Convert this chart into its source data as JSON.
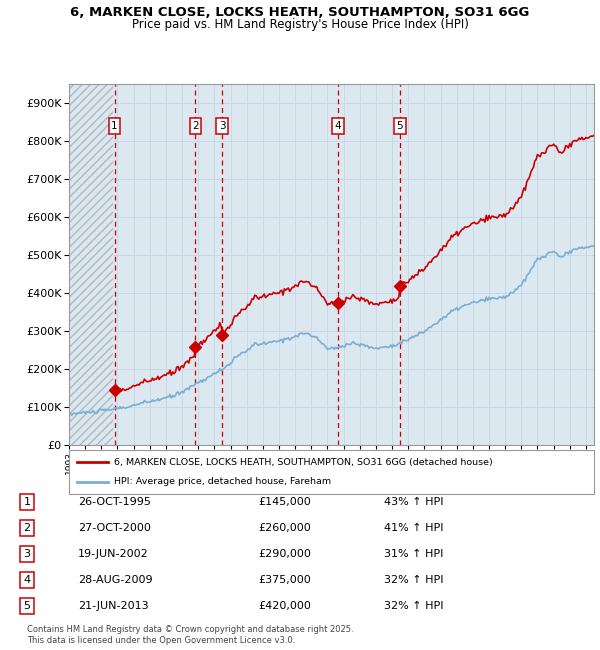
{
  "title_line1": "6, MARKEN CLOSE, LOCKS HEATH, SOUTHAMPTON, SO31 6GG",
  "title_line2": "Price paid vs. HM Land Registry's House Price Index (HPI)",
  "ylim": [
    0,
    950000
  ],
  "yticks": [
    0,
    100000,
    200000,
    300000,
    400000,
    500000,
    600000,
    700000,
    800000,
    900000
  ],
  "ytick_labels": [
    "£0",
    "£100K",
    "£200K",
    "£300K",
    "£400K",
    "£500K",
    "£600K",
    "£700K",
    "£800K",
    "£900K"
  ],
  "sale_dates_x": [
    1995.82,
    2000.83,
    2002.47,
    2009.66,
    2013.47
  ],
  "sale_prices_y": [
    145000,
    260000,
    290000,
    375000,
    420000
  ],
  "sale_labels": [
    "1",
    "2",
    "3",
    "4",
    "5"
  ],
  "hpi_line_color": "#7aaed4",
  "price_line_color": "#cc0000",
  "grid_color": "#c8d8e8",
  "bg_color": "#dce8f0",
  "legend_price_label": "6, MARKEN CLOSE, LOCKS HEATH, SOUTHAMPTON, SO31 6GG (detached house)",
  "legend_hpi_label": "HPI: Average price, detached house, Fareham",
  "table_entries": [
    {
      "num": "1",
      "date": "26-OCT-1995",
      "price": "£145,000",
      "hpi": "43% ↑ HPI"
    },
    {
      "num": "2",
      "date": "27-OCT-2000",
      "price": "£260,000",
      "hpi": "41% ↑ HPI"
    },
    {
      "num": "3",
      "date": "19-JUN-2002",
      "price": "£290,000",
      "hpi": "31% ↑ HPI"
    },
    {
      "num": "4",
      "date": "28-AUG-2009",
      "price": "£375,000",
      "hpi": "32% ↑ HPI"
    },
    {
      "num": "5",
      "date": "21-JUN-2013",
      "price": "£420,000",
      "hpi": "32% ↑ HPI"
    }
  ],
  "footer": "Contains HM Land Registry data © Crown copyright and database right 2025.\nThis data is licensed under the Open Government Licence v3.0.",
  "xmin": 1993.0,
  "xmax": 2025.5
}
